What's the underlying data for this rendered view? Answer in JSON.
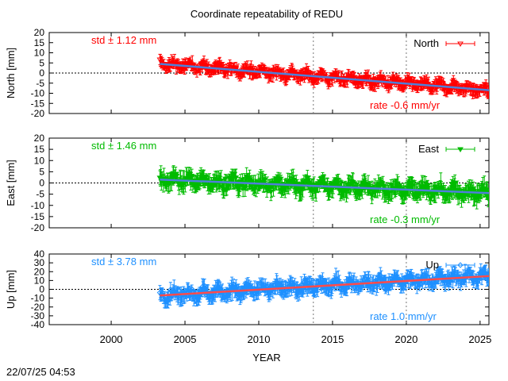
{
  "chart_data": {
    "type": "scatter",
    "title": "Coordinate repeatability of REDU",
    "xlabel": "YEAR",
    "xlim": [
      1995.8,
      2025.6
    ],
    "x_ticks": [
      2000,
      2005,
      2010,
      2015,
      2020,
      2025
    ],
    "vertical_marker_lines": [
      2013.7,
      2020.0
    ],
    "timestamp": "22/07/25 04:53",
    "data_start": 2003.3,
    "data_end": 2025.6,
    "grid": false,
    "panels": [
      {
        "name": "North",
        "ylabel": "North [mm]",
        "ylim": [
          -20,
          20
        ],
        "y_ticks": [
          -20,
          -15,
          -10,
          -5,
          0,
          5,
          10,
          15,
          20
        ],
        "legend": "North",
        "std_label": "std ± 1.12 mm",
        "rate_label": "rate -0.6 mm/yr",
        "trend": {
          "x": [
            2003.3,
            2025.6
          ],
          "y": [
            4.5,
            -8.5
          ]
        },
        "color": "#ff0000",
        "trend_color": "#4f7fd9",
        "marker": "triangle-down-open",
        "spread": 2.2,
        "noise": 1.3
      },
      {
        "name": "East",
        "ylabel": "East [mm]",
        "ylim": [
          -20,
          20
        ],
        "y_ticks": [
          -20,
          -15,
          -10,
          -5,
          0,
          5,
          10,
          15,
          20
        ],
        "legend": "East",
        "std_label": "std ± 1.46 mm",
        "rate_label": "rate -0.3 mm/yr",
        "trend": {
          "x": [
            2003.3,
            2025.6
          ],
          "y": [
            1.5,
            -4.5
          ]
        },
        "color": "#00bb00",
        "trend_color": "#4f7fd9",
        "marker": "triangle-down-filled",
        "spread": 2.8,
        "noise": 1.6
      },
      {
        "name": "Up",
        "ylabel": "Up [mm]",
        "ylim": [
          -40,
          40
        ],
        "y_ticks": [
          -40,
          -30,
          -20,
          -10,
          0,
          10,
          20,
          30,
          40
        ],
        "legend": "Up",
        "std_label": "std ± 3.78 mm",
        "rate_label": "rate  1.0 mm/yr",
        "trend": {
          "x": [
            2003.3,
            2025.6
          ],
          "y": [
            -7,
            15
          ]
        },
        "color": "#1e90ff",
        "trend_color": "#ff4b4b",
        "marker": "diamond-open",
        "spread": 6.5,
        "noise": 3.5
      }
    ]
  }
}
